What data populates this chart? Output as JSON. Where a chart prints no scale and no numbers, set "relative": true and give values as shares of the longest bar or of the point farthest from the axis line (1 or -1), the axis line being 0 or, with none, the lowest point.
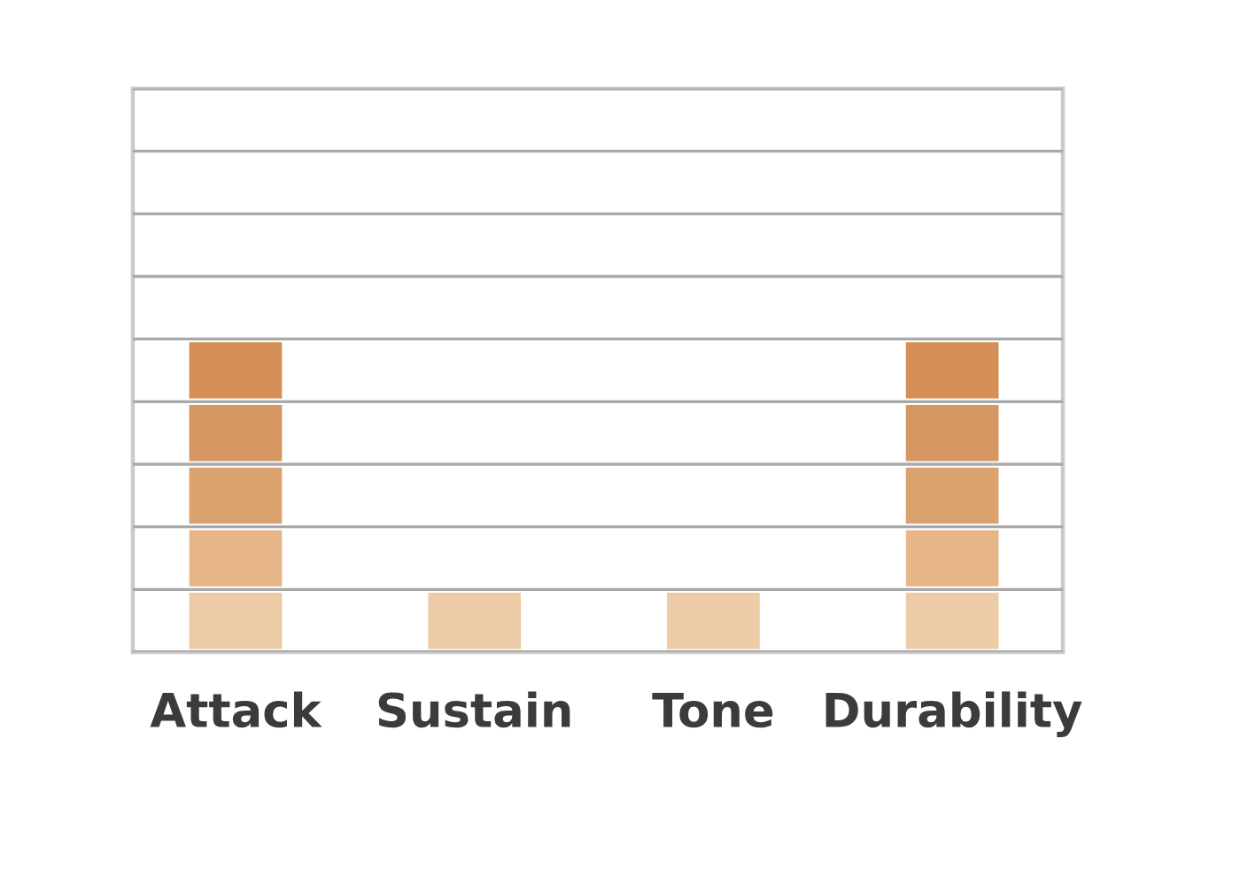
{
  "chart_data": {
    "type": "bar",
    "stacked": true,
    "relative": true,
    "categories": [
      "Attack",
      "Sustain",
      "Tone",
      "Durability"
    ],
    "series": [
      {
        "color": "#eccba6",
        "values": [
          0.2,
          0.2,
          0.2,
          0.2
        ]
      },
      {
        "color": "#e6b689",
        "values": [
          0.2,
          null,
          null,
          0.2
        ]
      },
      {
        "color": "#dba26e",
        "values": [
          0.2,
          null,
          null,
          0.2
        ]
      },
      {
        "color": "#d59762",
        "values": [
          0.2,
          null,
          null,
          0.2
        ]
      },
      {
        "color": "#d58f56",
        "values": [
          0.2,
          null,
          null,
          0.2
        ]
      }
    ],
    "grid": "y",
    "tick_labels": "x"
  }
}
